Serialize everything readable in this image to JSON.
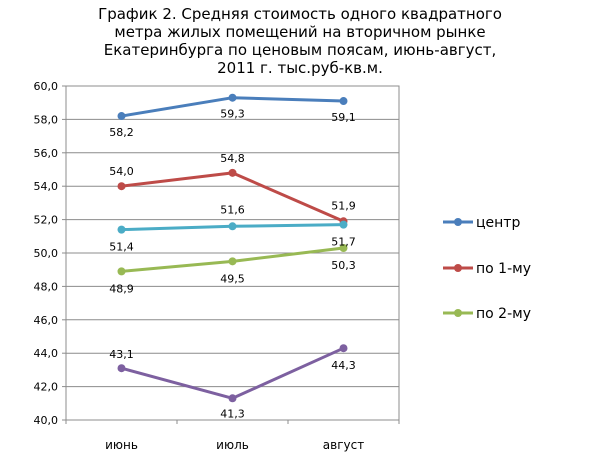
{
  "chart_data": {
    "type": "line",
    "title_lines": [
      "График 2. Средняя стоимость одного квадратного",
      "метра жилых помещений на вторичном рынке",
      "Екатеринбурга по ценовым поясам, июнь-август,",
      "2011 г. тыс.руб-кв.м."
    ],
    "categories": [
      "июнь",
      "июль",
      "август"
    ],
    "ylim": [
      40,
      60
    ],
    "ytick_step": 2,
    "ytick_labels": [
      "40,0",
      "42,0",
      "44,0",
      "46,0",
      "48,0",
      "50,0",
      "52,0",
      "54,0",
      "56,0",
      "58,0",
      "60,0"
    ],
    "grid": "horizontal",
    "legend_position": "right",
    "series": [
      {
        "name": "центр",
        "color": "#4a7ebb",
        "values": [
          58.2,
          59.3,
          59.1
        ],
        "labels": [
          "58,2",
          "59,3",
          "59,1"
        ],
        "in_legend": true
      },
      {
        "name": "по 1-му",
        "color": "#be4b48",
        "values": [
          54.0,
          54.8,
          51.9
        ],
        "labels": [
          "54,0",
          "54,8",
          "51,9"
        ],
        "in_legend": true
      },
      {
        "name": "по 2-му",
        "color": "#98b954",
        "values": [
          48.9,
          49.5,
          50.3
        ],
        "labels": [
          "48,9",
          "49,5",
          "50,3"
        ],
        "in_legend": true
      },
      {
        "name": "",
        "color": "#4bacc6",
        "values": [
          51.4,
          51.6,
          51.7
        ],
        "labels": [
          "51,4",
          "51,6",
          "51,7"
        ],
        "in_legend": false
      },
      {
        "name": "",
        "color": "#7d60a0",
        "values": [
          43.1,
          41.3,
          44.3
        ],
        "labels": [
          "43,1",
          "41,3",
          "44,3"
        ],
        "in_legend": false
      }
    ]
  }
}
